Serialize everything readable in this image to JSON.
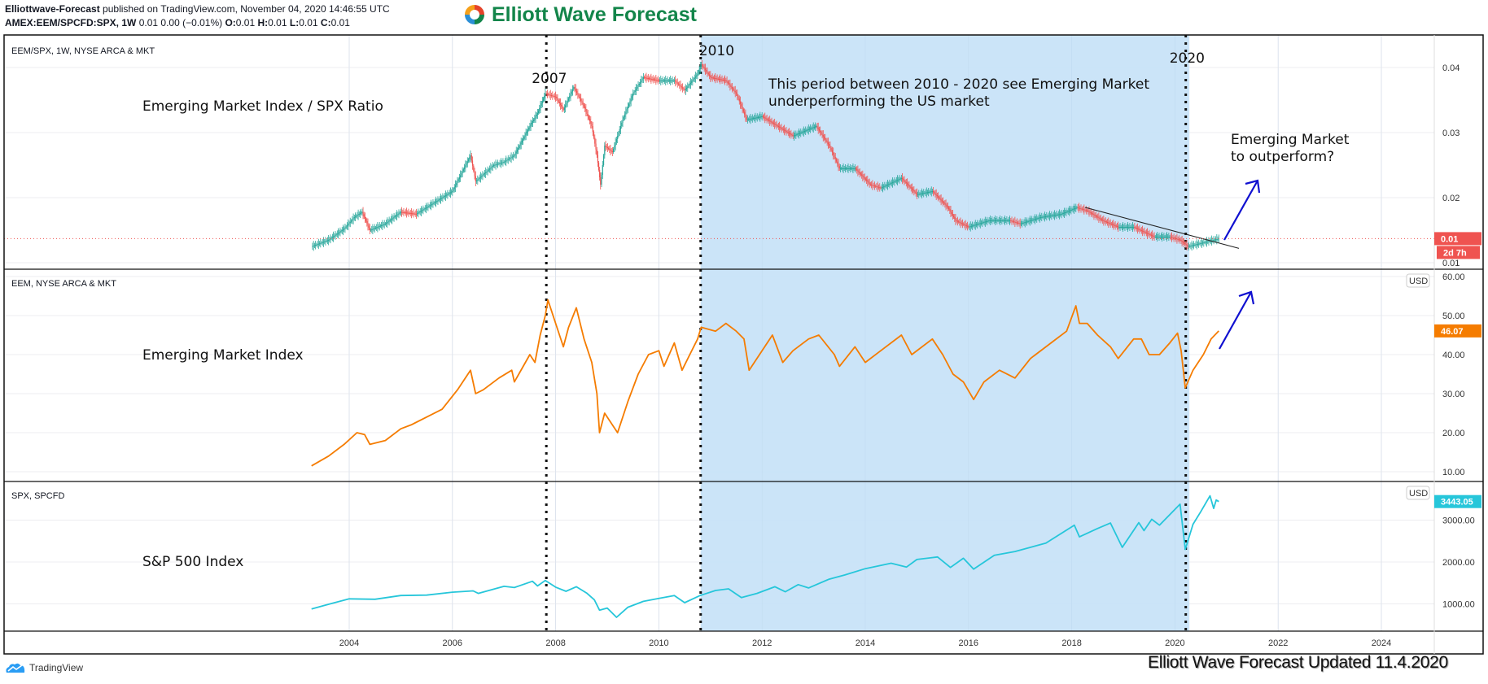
{
  "header": {
    "author": "Elliottwave-Forecast",
    "published": "published on TradingView.com, November 04, 2020 14:46:55 UTC",
    "symbol": "AMEX:EEM/SPCFD:SPX, 1W",
    "quote": "0.01 0.00 (−0.01%)",
    "o_label": "O:",
    "o": "0.01",
    "h_label": "H:",
    "h": "0.01",
    "l_label": "L:",
    "l": "0.01",
    "c_label": "C:",
    "c": "0.01"
  },
  "logo": {
    "text": "Elliott Wave Forecast",
    "colors": [
      "#e5432a",
      "#f6a01a",
      "#2b8fd6",
      "#13854a"
    ]
  },
  "footer": {
    "tradingview": "TradingView",
    "updated": "Elliott Wave Forecast Updated 11.4.2020"
  },
  "colors": {
    "up": "#26a69a",
    "down": "#ef5350",
    "eem": "#f57c00",
    "spx": "#26c6da",
    "shade": "#c8e3f8",
    "arrow": "#1010d0",
    "last_tag": "#ef5350"
  },
  "chart_data": [
    {
      "type": "candlestick",
      "pane_title": "EEM/SPX, 1W, NYSE ARCA & MKT",
      "label": "Emerging Market Index / SPX Ratio",
      "yticks": [
        0.04,
        0.03,
        0.02,
        0.01
      ],
      "ytick_labels": [
        "0.04",
        "0.03",
        "0.02",
        "0.01"
      ],
      "last_value_label": "0.01",
      "countdown": "2d 7h",
      "points": [
        [
          2003.27,
          0.0125
        ],
        [
          2003.6,
          0.0135
        ],
        [
          2003.9,
          0.0152
        ],
        [
          2004.1,
          0.017
        ],
        [
          2004.25,
          0.0178
        ],
        [
          2004.4,
          0.015
        ],
        [
          2004.7,
          0.016
        ],
        [
          2005.0,
          0.0178
        ],
        [
          2005.3,
          0.0175
        ],
        [
          2005.7,
          0.0195
        ],
        [
          2006.0,
          0.021
        ],
        [
          2006.35,
          0.0265
        ],
        [
          2006.45,
          0.0225
        ],
        [
          2006.8,
          0.025
        ],
        [
          2007.0,
          0.0255
        ],
        [
          2007.2,
          0.0265
        ],
        [
          2007.5,
          0.031
        ],
        [
          2007.65,
          0.033
        ],
        [
          2007.8,
          0.036
        ],
        [
          2008.0,
          0.0355
        ],
        [
          2008.15,
          0.0335
        ],
        [
          2008.35,
          0.037
        ],
        [
          2008.55,
          0.034
        ],
        [
          2008.7,
          0.031
        ],
        [
          2008.8,
          0.0265
        ],
        [
          2008.87,
          0.022
        ],
        [
          2008.95,
          0.028
        ],
        [
          2009.1,
          0.027
        ],
        [
          2009.3,
          0.032
        ],
        [
          2009.5,
          0.036
        ],
        [
          2009.7,
          0.0385
        ],
        [
          2010.0,
          0.038
        ],
        [
          2010.3,
          0.038
        ],
        [
          2010.5,
          0.0365
        ],
        [
          2010.75,
          0.039
        ],
        [
          2010.82,
          0.0405
        ],
        [
          2011.0,
          0.0385
        ],
        [
          2011.3,
          0.038
        ],
        [
          2011.5,
          0.036
        ],
        [
          2011.7,
          0.032
        ],
        [
          2012.0,
          0.0325
        ],
        [
          2012.3,
          0.031
        ],
        [
          2012.6,
          0.0295
        ],
        [
          2012.9,
          0.0305
        ],
        [
          2013.05,
          0.031
        ],
        [
          2013.3,
          0.028
        ],
        [
          2013.5,
          0.0245
        ],
        [
          2013.8,
          0.0245
        ],
        [
          2014.1,
          0.022
        ],
        [
          2014.3,
          0.0215
        ],
        [
          2014.7,
          0.023
        ],
        [
          2015.0,
          0.0205
        ],
        [
          2015.3,
          0.021
        ],
        [
          2015.6,
          0.0185
        ],
        [
          2015.75,
          0.0165
        ],
        [
          2016.0,
          0.0155
        ],
        [
          2016.4,
          0.0165
        ],
        [
          2016.8,
          0.0165
        ],
        [
          2017.0,
          0.016
        ],
        [
          2017.4,
          0.017
        ],
        [
          2017.8,
          0.0175
        ],
        [
          2018.1,
          0.0185
        ],
        [
          2018.3,
          0.018
        ],
        [
          2018.6,
          0.0165
        ],
        [
          2018.9,
          0.0155
        ],
        [
          2019.2,
          0.0155
        ],
        [
          2019.6,
          0.014
        ],
        [
          2019.9,
          0.014
        ],
        [
          2020.1,
          0.0135
        ],
        [
          2020.25,
          0.0125
        ],
        [
          2020.5,
          0.013
        ],
        [
          2020.85,
          0.0137
        ]
      ],
      "trendline": [
        [
          2018.26,
          0.0185
        ],
        [
          2021.24,
          0.0122
        ]
      ]
    },
    {
      "type": "line",
      "pane_title": "EEM, NYSE ARCA & MKT",
      "label": "Emerging Market Index",
      "currency": "USD",
      "yticks": [
        60,
        50,
        40,
        30,
        20,
        10
      ],
      "ytick_labels": [
        "60.00",
        "50.00",
        "40.00",
        "30.00",
        "20.00",
        "10.00"
      ],
      "last_value_label": "46.07",
      "points": [
        [
          2003.27,
          11.5
        ],
        [
          2003.6,
          14
        ],
        [
          2003.9,
          17
        ],
        [
          2004.15,
          20
        ],
        [
          2004.3,
          19.5
        ],
        [
          2004.4,
          17
        ],
        [
          2004.7,
          18
        ],
        [
          2005.0,
          21
        ],
        [
          2005.2,
          22
        ],
        [
          2005.5,
          24
        ],
        [
          2005.8,
          26
        ],
        [
          2006.1,
          31
        ],
        [
          2006.35,
          36
        ],
        [
          2006.45,
          30
        ],
        [
          2006.6,
          31
        ],
        [
          2006.9,
          34
        ],
        [
          2007.15,
          36
        ],
        [
          2007.2,
          33
        ],
        [
          2007.5,
          40
        ],
        [
          2007.6,
          38
        ],
        [
          2007.7,
          45
        ],
        [
          2007.8,
          50
        ],
        [
          2007.85,
          54
        ],
        [
          2008.0,
          48
        ],
        [
          2008.15,
          42
        ],
        [
          2008.25,
          47
        ],
        [
          2008.4,
          52
        ],
        [
          2008.55,
          44
        ],
        [
          2008.7,
          38
        ],
        [
          2008.8,
          30
        ],
        [
          2008.85,
          20
        ],
        [
          2008.95,
          25
        ],
        [
          2009.1,
          22
        ],
        [
          2009.2,
          20
        ],
        [
          2009.4,
          28
        ],
        [
          2009.6,
          35
        ],
        [
          2009.8,
          40
        ],
        [
          2010.0,
          41
        ],
        [
          2010.1,
          37
        ],
        [
          2010.3,
          43
        ],
        [
          2010.45,
          36
        ],
        [
          2010.6,
          40
        ],
        [
          2010.75,
          44
        ],
        [
          2010.82,
          47
        ],
        [
          2011.1,
          46
        ],
        [
          2011.3,
          48
        ],
        [
          2011.5,
          46
        ],
        [
          2011.65,
          44
        ],
        [
          2011.75,
          36
        ],
        [
          2011.9,
          39
        ],
        [
          2012.2,
          45
        ],
        [
          2012.4,
          38
        ],
        [
          2012.6,
          41
        ],
        [
          2012.9,
          44
        ],
        [
          2013.1,
          45
        ],
        [
          2013.4,
          40
        ],
        [
          2013.5,
          37
        ],
        [
          2013.8,
          42
        ],
        [
          2014.0,
          38
        ],
        [
          2014.3,
          41
        ],
        [
          2014.7,
          45
        ],
        [
          2014.9,
          40
        ],
        [
          2015.3,
          44
        ],
        [
          2015.5,
          40
        ],
        [
          2015.7,
          35
        ],
        [
          2015.9,
          33
        ],
        [
          2016.1,
          28.5
        ],
        [
          2016.3,
          33
        ],
        [
          2016.6,
          36
        ],
        [
          2016.9,
          34
        ],
        [
          2017.2,
          39
        ],
        [
          2017.6,
          43
        ],
        [
          2017.9,
          46
        ],
        [
          2018.08,
          52.5
        ],
        [
          2018.15,
          48
        ],
        [
          2018.3,
          48
        ],
        [
          2018.5,
          45
        ],
        [
          2018.75,
          42
        ],
        [
          2018.9,
          39
        ],
        [
          2019.2,
          44
        ],
        [
          2019.35,
          44
        ],
        [
          2019.5,
          40
        ],
        [
          2019.7,
          40
        ],
        [
          2019.9,
          43
        ],
        [
          2020.05,
          45.5
        ],
        [
          2020.12,
          41
        ],
        [
          2020.2,
          31.5
        ],
        [
          2020.35,
          36
        ],
        [
          2020.55,
          40
        ],
        [
          2020.7,
          44
        ],
        [
          2020.85,
          46.07
        ]
      ]
    },
    {
      "type": "line",
      "pane_title": "SPX, SPCFD",
      "label": "S&P 500 Index",
      "currency": "USD",
      "yticks": [
        3000,
        2000,
        1000
      ],
      "ytick_labels": [
        "3000.00",
        "2000.00",
        "1000.00"
      ],
      "last_value_label": "3443.05",
      "points": [
        [
          2003.27,
          880
        ],
        [
          2003.6,
          990
        ],
        [
          2004.0,
          1120
        ],
        [
          2004.5,
          1110
        ],
        [
          2005.0,
          1200
        ],
        [
          2005.5,
          1210
        ],
        [
          2006.0,
          1280
        ],
        [
          2006.4,
          1310
        ],
        [
          2006.5,
          1250
        ],
        [
          2007.0,
          1420
        ],
        [
          2007.2,
          1390
        ],
        [
          2007.55,
          1540
        ],
        [
          2007.65,
          1430
        ],
        [
          2007.8,
          1560
        ],
        [
          2008.0,
          1400
        ],
        [
          2008.2,
          1300
        ],
        [
          2008.4,
          1410
        ],
        [
          2008.6,
          1260
        ],
        [
          2008.75,
          1100
        ],
        [
          2008.85,
          850
        ],
        [
          2009.0,
          900
        ],
        [
          2009.18,
          680
        ],
        [
          2009.4,
          920
        ],
        [
          2009.7,
          1060
        ],
        [
          2010.0,
          1130
        ],
        [
          2010.3,
          1200
        ],
        [
          2010.5,
          1030
        ],
        [
          2010.8,
          1200
        ],
        [
          2011.1,
          1320
        ],
        [
          2011.35,
          1360
        ],
        [
          2011.6,
          1150
        ],
        [
          2011.9,
          1250
        ],
        [
          2012.25,
          1410
        ],
        [
          2012.45,
          1290
        ],
        [
          2012.7,
          1460
        ],
        [
          2012.9,
          1380
        ],
        [
          2013.3,
          1590
        ],
        [
          2013.6,
          1690
        ],
        [
          2014.0,
          1840
        ],
        [
          2014.5,
          1970
        ],
        [
          2014.8,
          1880
        ],
        [
          2015.0,
          2060
        ],
        [
          2015.4,
          2120
        ],
        [
          2015.65,
          1870
        ],
        [
          2015.9,
          2090
        ],
        [
          2016.1,
          1830
        ],
        [
          2016.5,
          2160
        ],
        [
          2016.9,
          2250
        ],
        [
          2017.5,
          2450
        ],
        [
          2018.05,
          2880
        ],
        [
          2018.15,
          2600
        ],
        [
          2018.5,
          2800
        ],
        [
          2018.75,
          2930
        ],
        [
          2018.98,
          2350
        ],
        [
          2019.3,
          2940
        ],
        [
          2019.4,
          2750
        ],
        [
          2019.55,
          3020
        ],
        [
          2019.7,
          2880
        ],
        [
          2020.1,
          3380
        ],
        [
          2020.2,
          2300
        ],
        [
          2020.35,
          2900
        ],
        [
          2020.5,
          3200
        ],
        [
          2020.68,
          3580
        ],
        [
          2020.75,
          3280
        ],
        [
          2020.8,
          3480
        ],
        [
          2020.85,
          3443
        ]
      ]
    }
  ],
  "xaxis": {
    "ticks": [
      2004,
      2006,
      2008,
      2010,
      2012,
      2014,
      2016,
      2018,
      2020,
      2022,
      2024
    ],
    "tick_labels": [
      "2004",
      "2006",
      "2008",
      "2010",
      "2012",
      "2014",
      "2016",
      "2018",
      "2020",
      "2022",
      "2024"
    ]
  },
  "markers": [
    {
      "year": 2007.82,
      "label": "2007"
    },
    {
      "year": 2010.81,
      "label": "2010"
    },
    {
      "year": 2020.21,
      "label": "2020"
    }
  ],
  "shaded_range": [
    2010.81,
    2020.28
  ],
  "annotations": {
    "period_line1": "This period between 2010 - 2020 see Emerging Market",
    "period_line2": "underperforming the US market",
    "outperform_line1": "Emerging Market",
    "outperform_line2": "to outperform?"
  }
}
